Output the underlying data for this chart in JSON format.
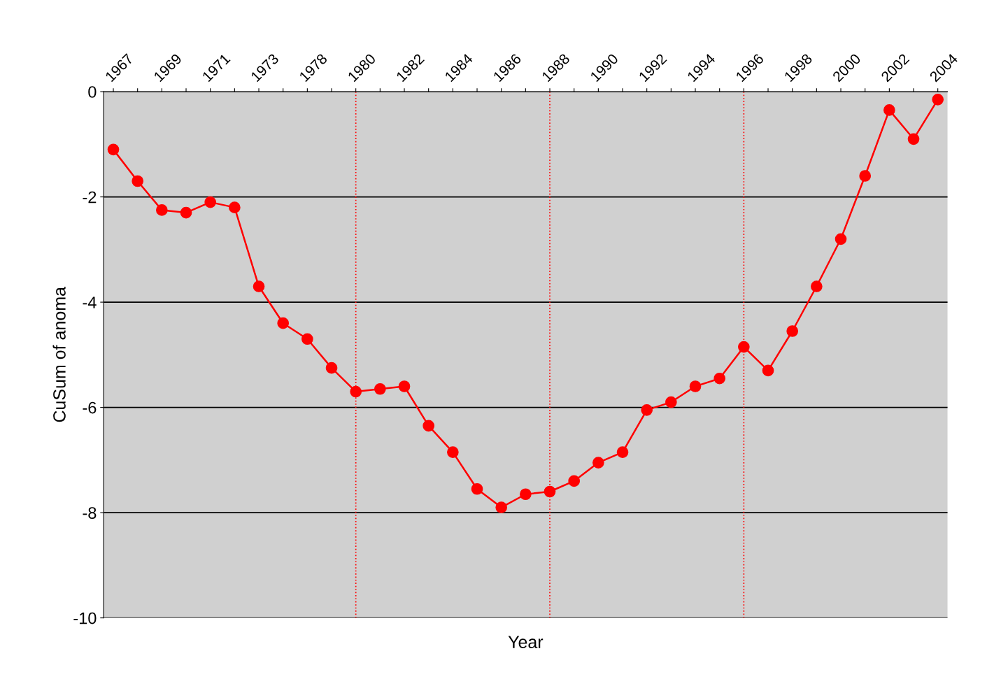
{
  "chart_data": {
    "type": "line",
    "xlabel": "Year",
    "ylabel": "CuSum of anoma",
    "categories": [
      "1967",
      null,
      "1969",
      null,
      "1971",
      null,
      "1973",
      null,
      "1978",
      null,
      "1980",
      null,
      "1982",
      null,
      "1984",
      null,
      "1986",
      null,
      "1988",
      null,
      "1990",
      null,
      "1992",
      null,
      "1994",
      null,
      "1996",
      null,
      "1998",
      null,
      "2000",
      null,
      "2002",
      null,
      "2004"
    ],
    "series": [
      {
        "color": "#ff0000",
        "values": [
          -1.1,
          -1.7,
          -2.25,
          -2.3,
          -2.1,
          -2.2,
          -3.7,
          -4.4,
          -4.7,
          -5.25,
          -5.7,
          -5.65,
          -5.6,
          -6.35,
          -6.85,
          -7.55,
          -7.9,
          -7.65,
          -7.6,
          -7.4,
          -7.05,
          -6.85,
          -6.05,
          -5.9,
          -5.6,
          -5.45,
          -4.85,
          -5.3,
          -4.55,
          -3.7,
          -2.8,
          -1.6,
          -0.35,
          -0.9,
          -0.15
        ]
      }
    ],
    "ylim": [
      -10,
      0
    ],
    "yticks": [
      0,
      -2,
      -4,
      -6,
      -8,
      -10
    ],
    "grid": "y",
    "marker": "circle",
    "line_style": "solid",
    "ref_lines": [
      {
        "axis": "x",
        "value": "1980",
        "color": "#ff0000",
        "line_style": "dotted"
      },
      {
        "axis": "x",
        "value": "1988",
        "color": "#ff0000",
        "line_style": "dotted"
      },
      {
        "axis": "x",
        "value": "1996",
        "color": "#ff0000",
        "line_style": "dotted"
      }
    ]
  }
}
